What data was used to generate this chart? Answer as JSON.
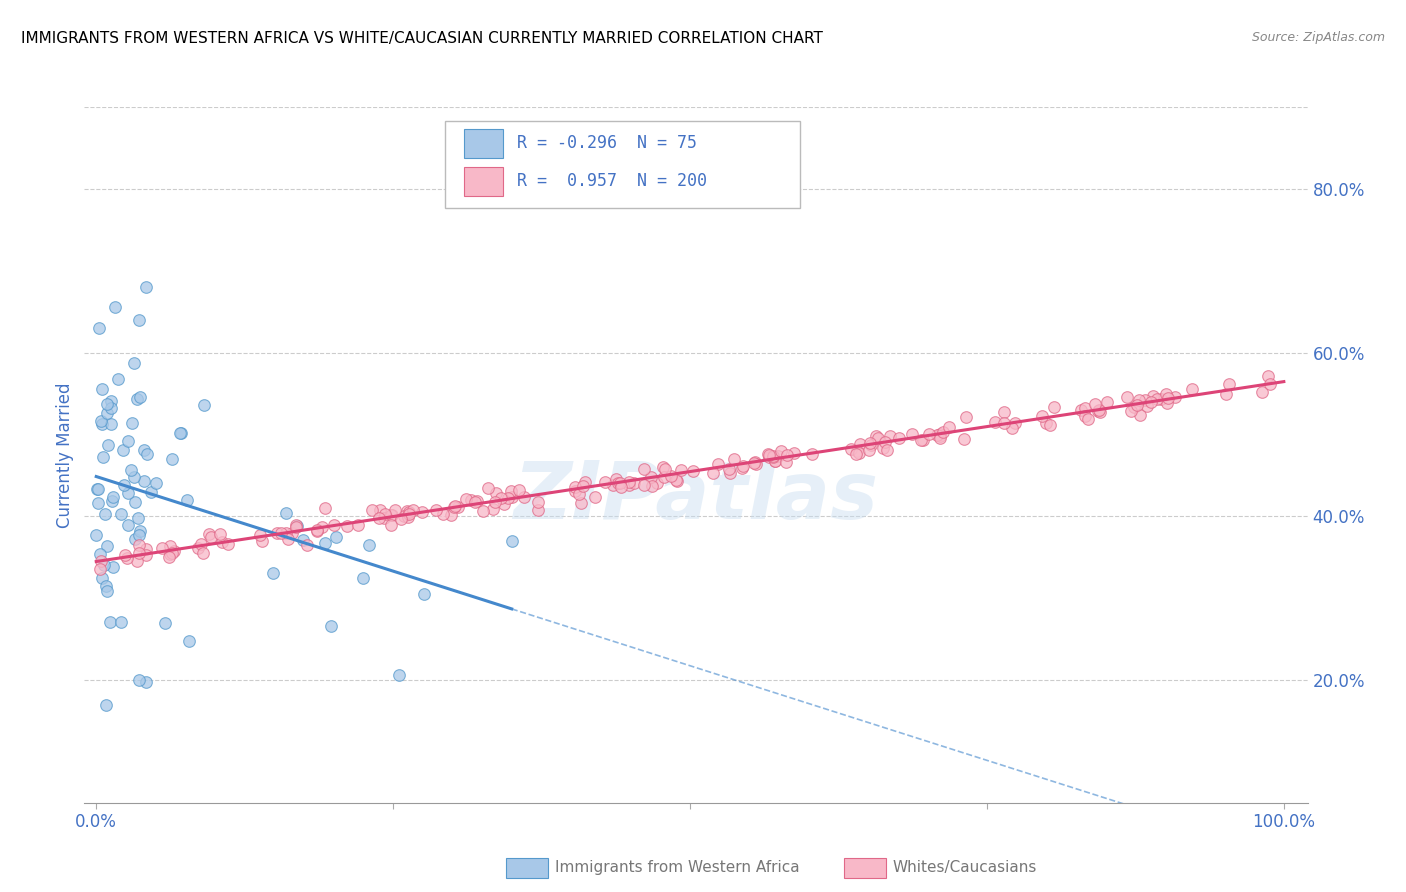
{
  "title": "IMMIGRANTS FROM WESTERN AFRICA VS WHITE/CAUCASIAN CURRENTLY MARRIED CORRELATION CHART",
  "source": "Source: ZipAtlas.com",
  "ylabel": "Currently Married",
  "R1": "-0.296",
  "N1": "75",
  "R2": "0.957",
  "N2": "200",
  "blue_fill": "#a8c8e8",
  "blue_edge": "#5599cc",
  "pink_fill": "#f8b8c8",
  "pink_edge": "#e06888",
  "blue_line": "#4488cc",
  "pink_line": "#dd4477",
  "axis_color": "#4472c4",
  "grid_color": "#cccccc",
  "watermark": "ZIPatlas",
  "legend1_label": "Immigrants from Western Africa",
  "legend2_label": "Whites/Caucasians"
}
